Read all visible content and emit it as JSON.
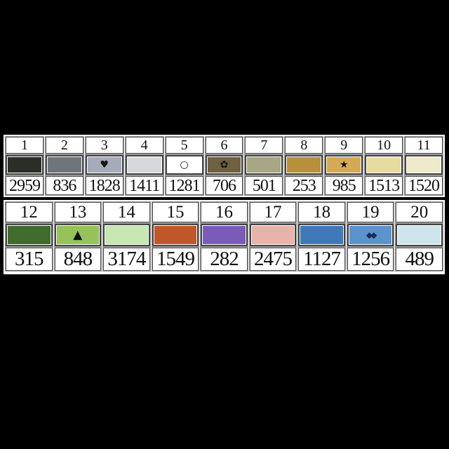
{
  "chart_data": {
    "type": "table",
    "rows": [
      [
        {
          "number": "1",
          "code": "2959",
          "color": "#2a2e27",
          "symbol": ""
        },
        {
          "number": "2",
          "code": "836",
          "color": "#6f767b",
          "symbol": ""
        },
        {
          "number": "3",
          "code": "1828",
          "color": "#a6abbb",
          "symbol": "♥",
          "symbol_name": "heart"
        },
        {
          "number": "4",
          "code": "1411",
          "color": "#d5d9de",
          "symbol": ""
        },
        {
          "number": "5",
          "code": "1281",
          "color": "#ffffff",
          "symbol": "○",
          "symbol_name": "circle"
        },
        {
          "number": "6",
          "code": "706",
          "color": "#706040",
          "symbol": "✿",
          "symbol_name": "flower"
        },
        {
          "number": "7",
          "code": "501",
          "color": "#a8a684",
          "symbol": ""
        },
        {
          "number": "8",
          "code": "253",
          "color": "#b8903a",
          "symbol": ""
        },
        {
          "number": "9",
          "code": "985",
          "color": "#d6aa55",
          "symbol": "★",
          "symbol_name": "star"
        },
        {
          "number": "10",
          "code": "1513",
          "color": "#e8dba0",
          "symbol": ""
        },
        {
          "number": "11",
          "code": "1520",
          "color": "#efebca",
          "symbol": ""
        }
      ],
      [
        {
          "number": "12",
          "code": "315",
          "color": "#3f6c2c",
          "symbol": ""
        },
        {
          "number": "13",
          "code": "848",
          "color": "#96c25a",
          "symbol": "▲",
          "symbol_name": "triangle"
        },
        {
          "number": "14",
          "code": "3174",
          "color": "#c6e6b2",
          "symbol": ""
        },
        {
          "number": "15",
          "code": "1549",
          "color": "#c0572a",
          "symbol": ""
        },
        {
          "number": "16",
          "code": "282",
          "color": "#7a5cb8",
          "symbol": ""
        },
        {
          "number": "17",
          "code": "2475",
          "color": "#e8b3ab",
          "symbol": ""
        },
        {
          "number": "18",
          "code": "1127",
          "color": "#3f7ab8",
          "symbol": ""
        },
        {
          "number": "19",
          "code": "1256",
          "color": "#5a94cc",
          "symbol": "◆◆",
          "symbol_name": "double-diamond"
        },
        {
          "number": "20",
          "code": "489",
          "color": "#cfe5ee",
          "symbol": ""
        }
      ]
    ]
  }
}
